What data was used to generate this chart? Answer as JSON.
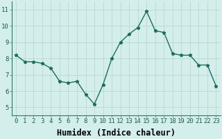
{
  "x": [
    0,
    1,
    2,
    3,
    4,
    5,
    6,
    7,
    8,
    9,
    10,
    11,
    12,
    13,
    14,
    15,
    16,
    17,
    18,
    19,
    20,
    21,
    22,
    23
  ],
  "y": [
    8.2,
    7.8,
    7.8,
    7.7,
    7.4,
    6.6,
    6.5,
    6.6,
    5.8,
    5.2,
    6.4,
    8.0,
    9.0,
    9.5,
    9.9,
    10.9,
    9.7,
    9.6,
    8.3,
    8.2,
    8.2,
    7.6,
    7.6,
    6.3
  ],
  "xlabel": "Humidex (Indice chaleur)",
  "xlim": [
    -0.5,
    23.5
  ],
  "ylim": [
    4.5,
    11.5
  ],
  "yticks": [
    5,
    6,
    7,
    8,
    9,
    10,
    11
  ],
  "xticks": [
    0,
    1,
    2,
    3,
    4,
    5,
    6,
    7,
    8,
    9,
    10,
    11,
    12,
    13,
    14,
    15,
    16,
    17,
    18,
    19,
    20,
    21,
    22,
    23
  ],
  "xtick_labels": [
    "0",
    "1",
    "2",
    "3",
    "4",
    "5",
    "6",
    "7",
    "8",
    "9",
    "10",
    "11",
    "12",
    "13",
    "14",
    "15",
    "16",
    "17",
    "18",
    "19",
    "20",
    "21",
    "22",
    "23"
  ],
  "line_color": "#1e6b5e",
  "marker": "*",
  "bg_color": "#d4eeeb",
  "grid_color": "#b8d8d4",
  "tick_label_fontsize": 6.5,
  "xlabel_fontsize": 8.5,
  "linewidth": 1.0,
  "markersize": 3.5
}
